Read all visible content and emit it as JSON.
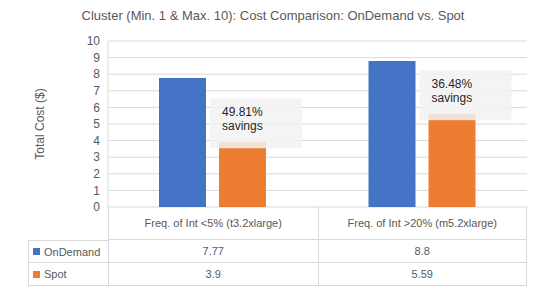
{
  "chart_data": {
    "type": "bar",
    "title": "Cluster (Min. 1 & Max. 10): Cost Comparison: OnDemand vs. Spot",
    "y_label": "Total Cost ($)",
    "categories": [
      "Freq. of Int <5% (t3.2xlarge)",
      "Freq. of Int >20% (m5.2xlarge)"
    ],
    "series": [
      {
        "name": "OnDemand",
        "color": "#4472c4",
        "values": [
          7.77,
          8.8
        ]
      },
      {
        "name": "Spot",
        "color": "#ed7d31",
        "values": [
          3.9,
          5.59
        ]
      }
    ],
    "ylim": [
      0,
      10
    ],
    "yticks": [
      0,
      1,
      2,
      3,
      4,
      5,
      6,
      7,
      8,
      9,
      10
    ],
    "grid": true,
    "annotations": [
      "49.81% savings",
      "36.48% savings"
    ]
  }
}
